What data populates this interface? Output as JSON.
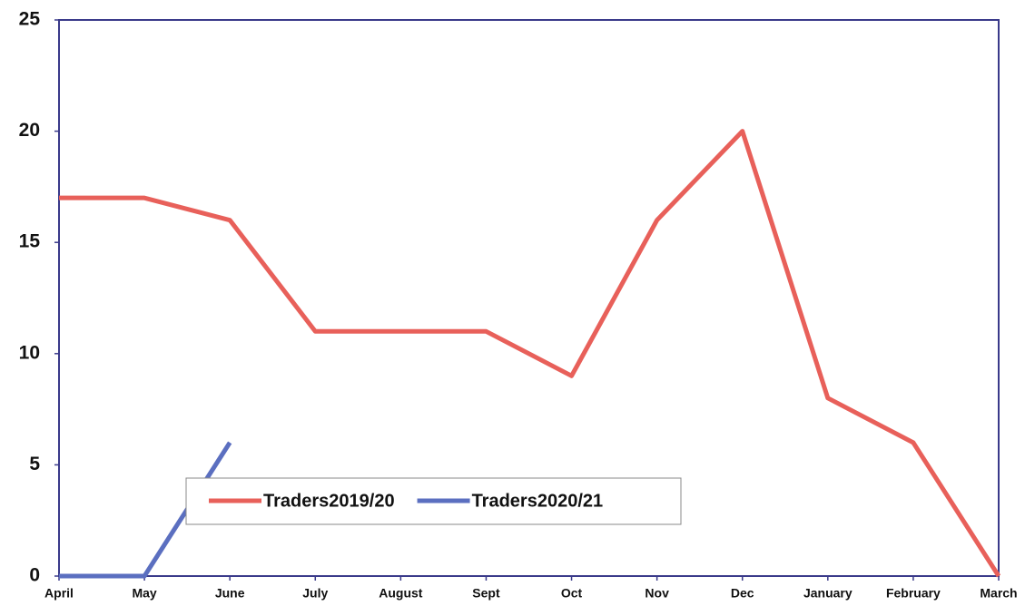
{
  "chart_data": {
    "type": "line",
    "categories": [
      "April",
      "May",
      "June",
      "July",
      "August",
      "Sept",
      "Oct",
      "Nov",
      "Dec",
      "January",
      "February",
      "March"
    ],
    "series": [
      {
        "name": "Traders2019/20",
        "color": "#e8605a",
        "values": [
          17,
          17,
          16,
          11,
          11,
          11,
          9,
          16,
          20,
          8,
          6,
          0
        ]
      },
      {
        "name": "Traders2020/21",
        "color": "#5b6fc0",
        "values": [
          0,
          0,
          6,
          null,
          null,
          null,
          null,
          null,
          null,
          null,
          null,
          null
        ]
      }
    ],
    "ylim": [
      0,
      25
    ],
    "yticks": [
      0,
      5,
      10,
      15,
      20,
      25
    ],
    "legend": "bottom-left"
  }
}
